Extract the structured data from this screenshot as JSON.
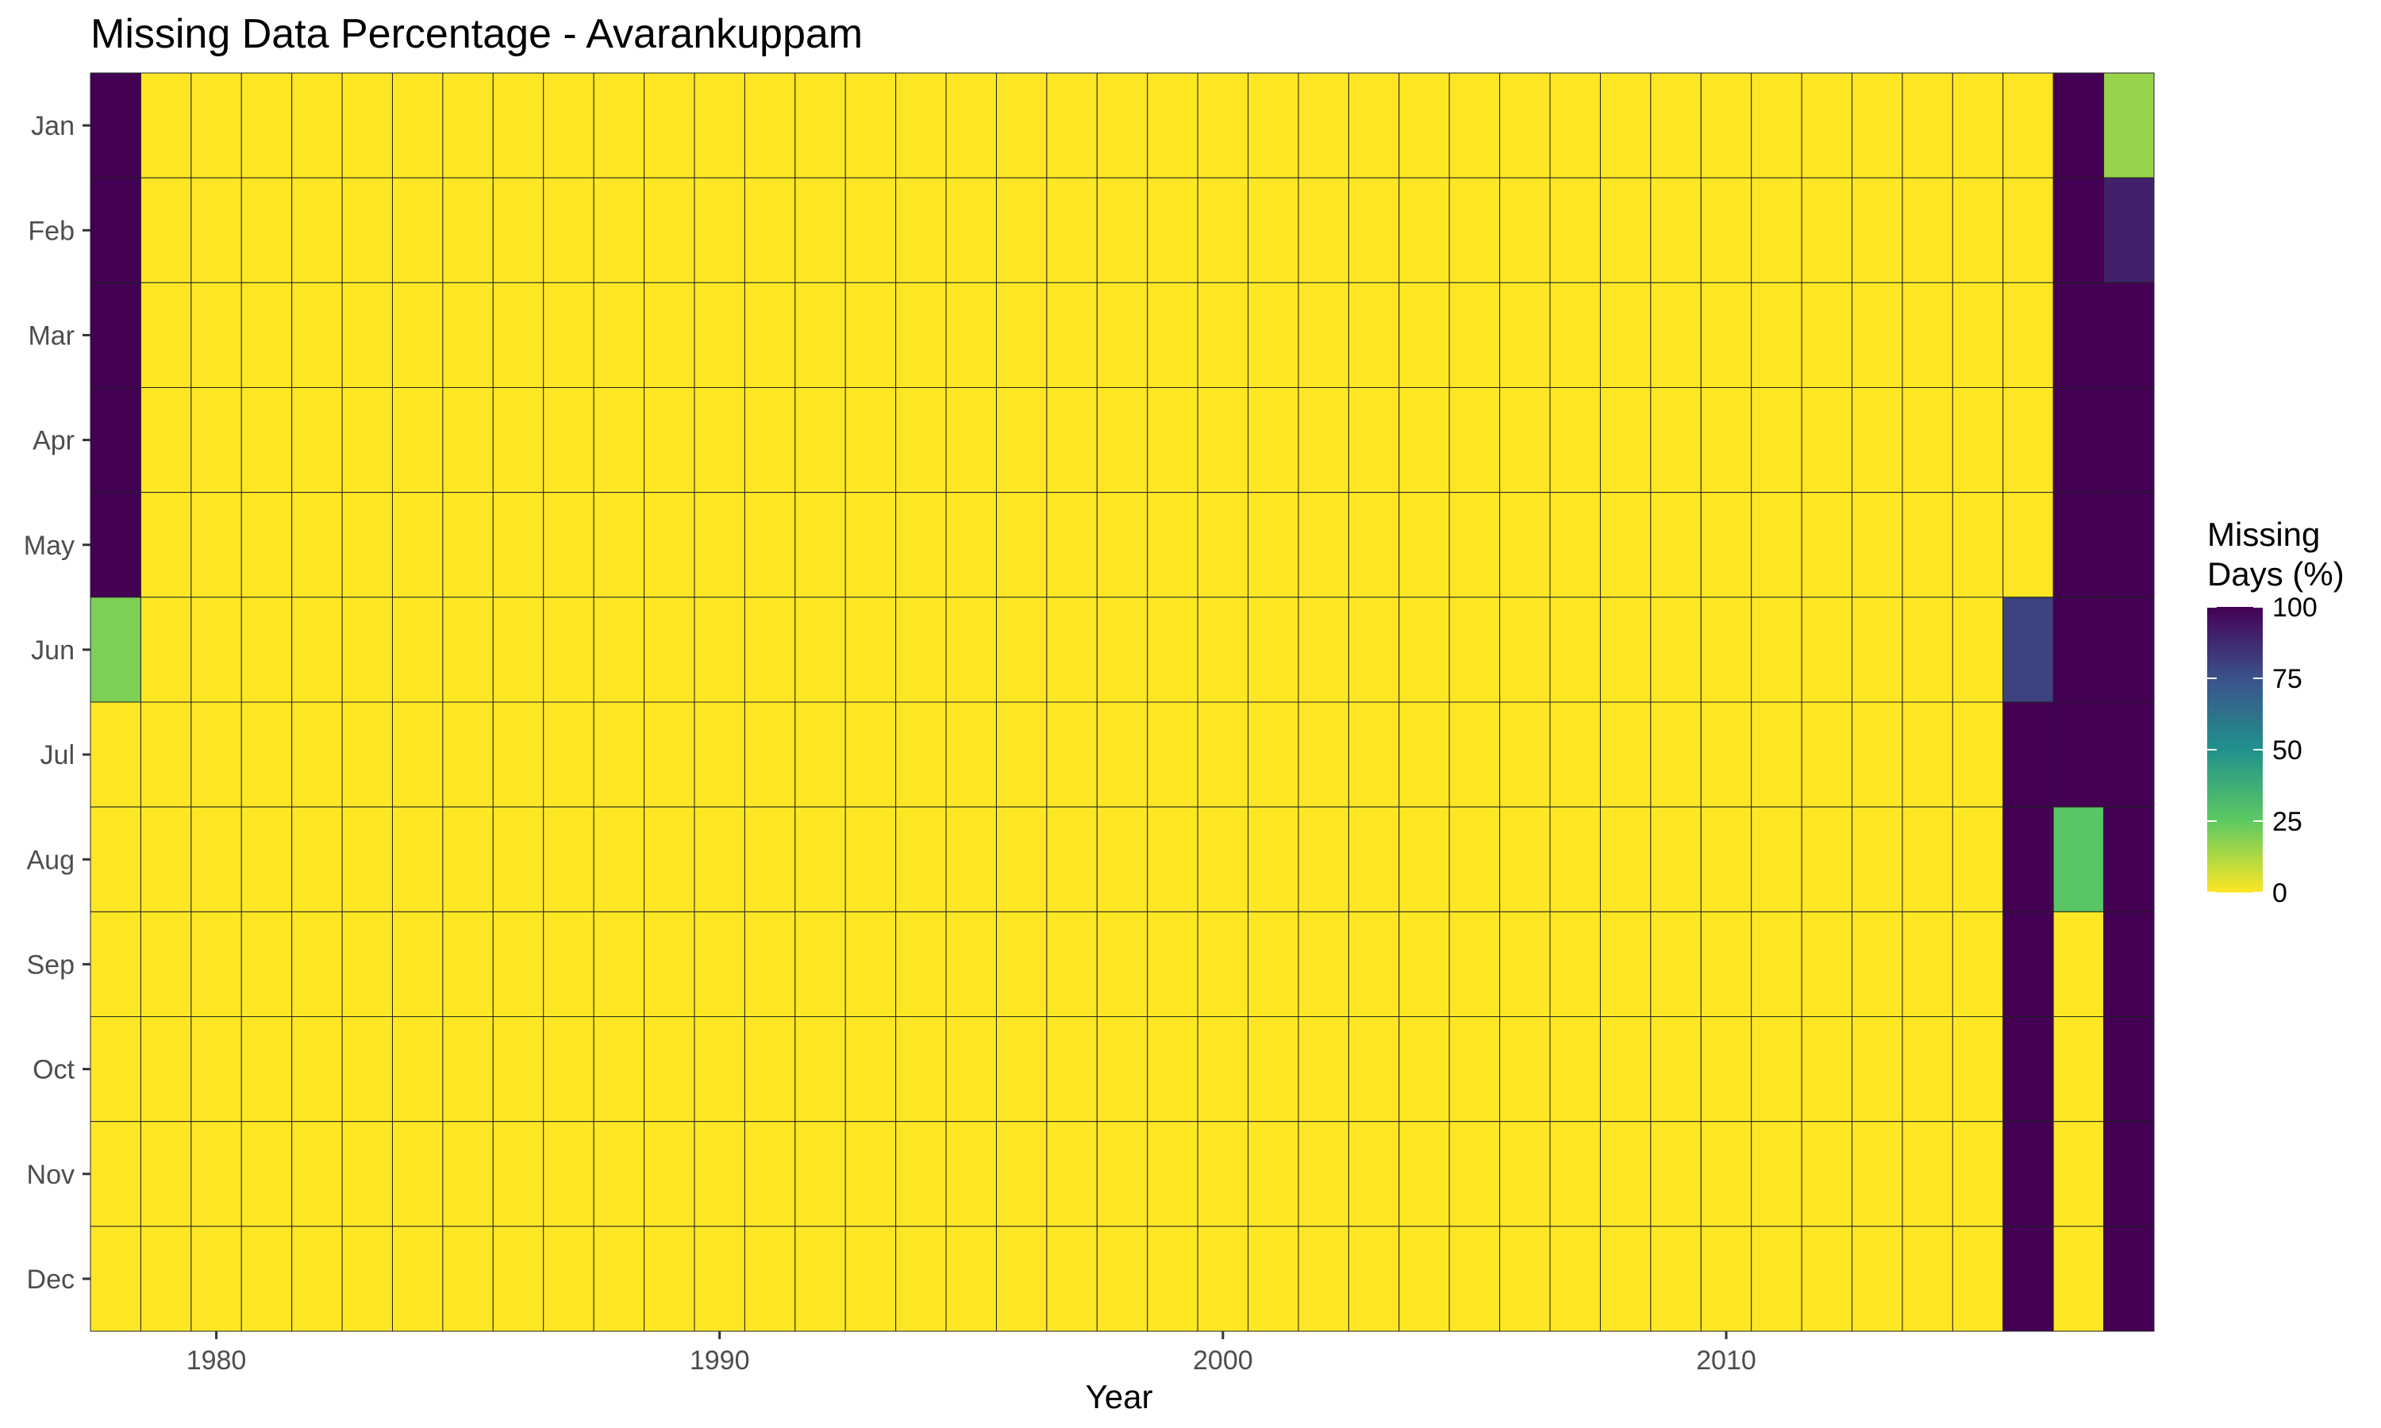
{
  "chart_data": {
    "type": "heatmap",
    "title": "Missing Data Percentage - Avarankuppam",
    "xlabel": "Year",
    "ylabel": "",
    "x_ticks": [
      1980,
      1990,
      2000,
      2010
    ],
    "months": [
      "Jan",
      "Feb",
      "Mar",
      "Apr",
      "May",
      "Jun",
      "Jul",
      "Aug",
      "Sep",
      "Oct",
      "Nov",
      "Dec"
    ],
    "years": [
      1978,
      1979,
      1980,
      1981,
      1982,
      1983,
      1984,
      1985,
      1986,
      1987,
      1988,
      1989,
      1990,
      1991,
      1992,
      1993,
      1994,
      1995,
      1996,
      1997,
      1998,
      1999,
      2000,
      2001,
      2002,
      2003,
      2004,
      2005,
      2006,
      2007,
      2008,
      2009,
      2010,
      2011,
      2012,
      2013,
      2014,
      2015,
      2016,
      2017,
      2018
    ],
    "default_value": 0,
    "nonzero_cells": [
      {
        "year": 1978,
        "month": "Jan",
        "value": 100
      },
      {
        "year": 1978,
        "month": "Feb",
        "value": 100
      },
      {
        "year": 1978,
        "month": "Mar",
        "value": 100
      },
      {
        "year": 1978,
        "month": "Apr",
        "value": 100
      },
      {
        "year": 1978,
        "month": "May",
        "value": 100
      },
      {
        "year": 1978,
        "month": "Jun",
        "value": 20
      },
      {
        "year": 2016,
        "month": "Jun",
        "value": 80
      },
      {
        "year": 2016,
        "month": "Jul",
        "value": 100
      },
      {
        "year": 2016,
        "month": "Aug",
        "value": 100
      },
      {
        "year": 2016,
        "month": "Sep",
        "value": 100
      },
      {
        "year": 2016,
        "month": "Oct",
        "value": 100
      },
      {
        "year": 2016,
        "month": "Nov",
        "value": 100
      },
      {
        "year": 2016,
        "month": "Dec",
        "value": 100
      },
      {
        "year": 2017,
        "month": "Jan",
        "value": 100
      },
      {
        "year": 2017,
        "month": "Feb",
        "value": 100
      },
      {
        "year": 2017,
        "month": "Mar",
        "value": 100
      },
      {
        "year": 2017,
        "month": "Apr",
        "value": 100
      },
      {
        "year": 2017,
        "month": "May",
        "value": 100
      },
      {
        "year": 2017,
        "month": "Jun",
        "value": 100
      },
      {
        "year": 2017,
        "month": "Jul",
        "value": 100
      },
      {
        "year": 2017,
        "month": "Aug",
        "value": 27
      },
      {
        "year": 2018,
        "month": "Jan",
        "value": 16
      },
      {
        "year": 2018,
        "month": "Feb",
        "value": 90
      },
      {
        "year": 2018,
        "month": "Mar",
        "value": 100
      },
      {
        "year": 2018,
        "month": "Apr",
        "value": 100
      },
      {
        "year": 2018,
        "month": "May",
        "value": 100
      },
      {
        "year": 2018,
        "month": "Jun",
        "value": 100
      },
      {
        "year": 2018,
        "month": "Jul",
        "value": 100
      },
      {
        "year": 2018,
        "month": "Aug",
        "value": 100
      },
      {
        "year": 2018,
        "month": "Sep",
        "value": 100
      },
      {
        "year": 2018,
        "month": "Oct",
        "value": 100
      },
      {
        "year": 2018,
        "month": "Nov",
        "value": 100
      },
      {
        "year": 2018,
        "month": "Dec",
        "value": 100
      }
    ],
    "legend": {
      "title_line1": "Missing",
      "title_line2": "Days (%)",
      "breaks": [
        0,
        25,
        50,
        75,
        100
      ],
      "placement": "right"
    },
    "color_scale": {
      "name": "viridis (reversed)",
      "domain": [
        0,
        100
      ],
      "stops": [
        "#fde725",
        "#5ec962",
        "#21918c",
        "#3b528b",
        "#440154"
      ]
    },
    "grid": false
  }
}
